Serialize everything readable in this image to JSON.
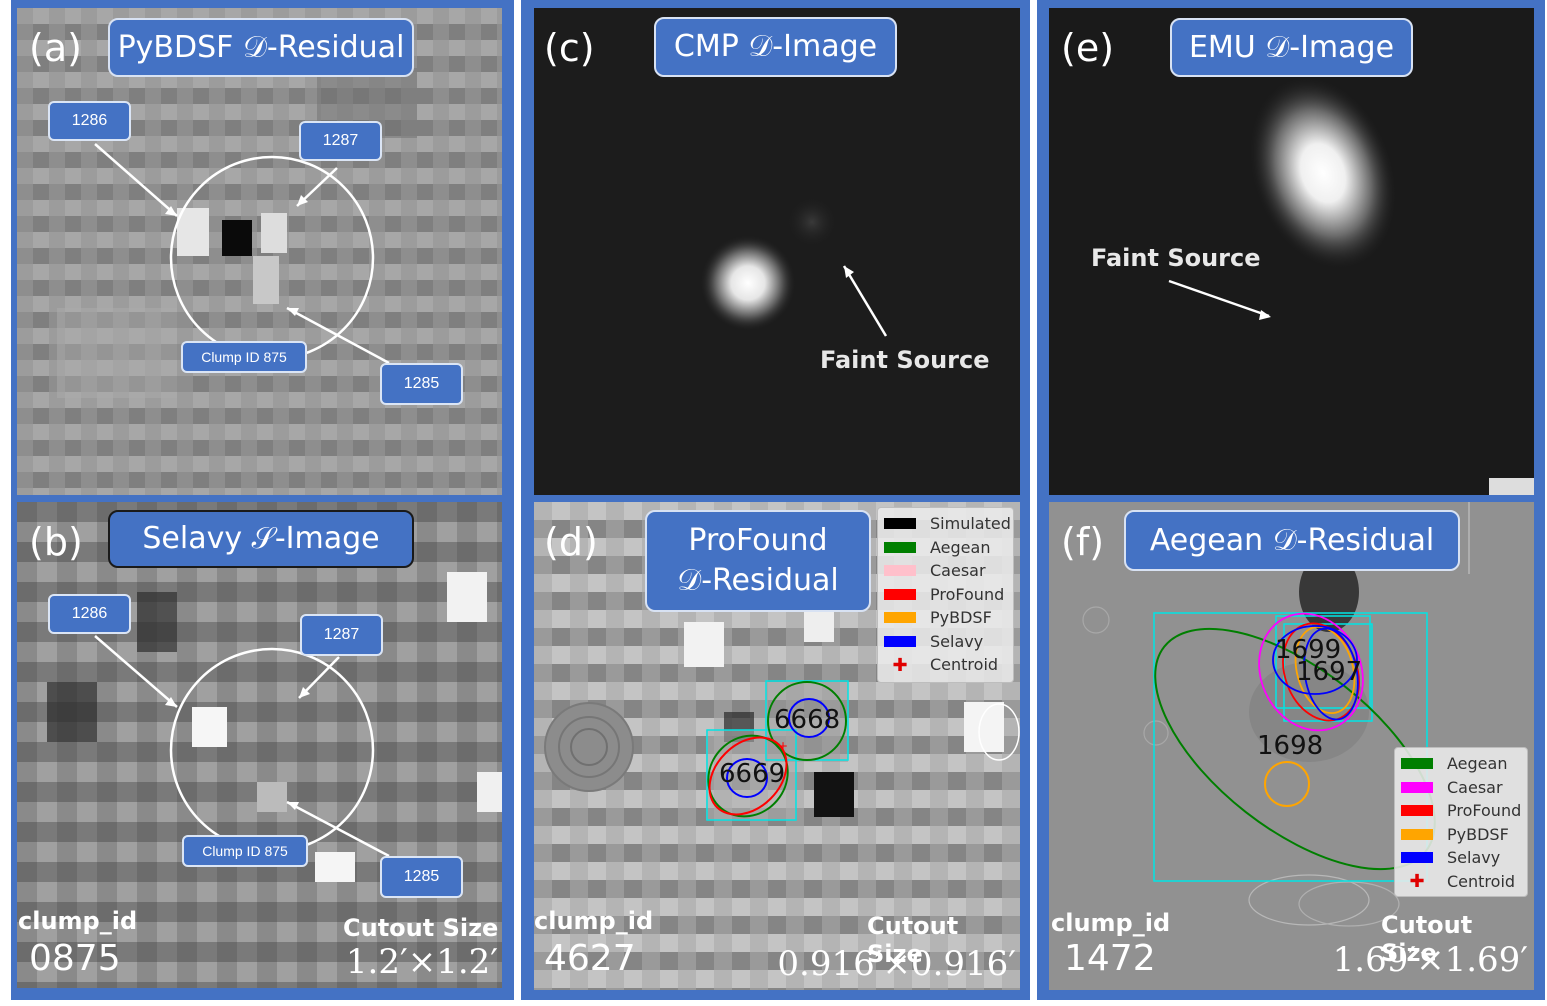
{
  "panels": {
    "a": {
      "letter": "(a)",
      "title": "PyBDSF 𝒟-Residual",
      "tags": [
        "1286",
        "1287",
        "Clump ID 875",
        "1285"
      ]
    },
    "b": {
      "letter": "(b)",
      "title": "Selavy 𝒮-Image",
      "tags": [
        "1286",
        "1287",
        "Clump ID 875",
        "1285"
      ],
      "clump_label": "clump_id",
      "clump_value": "0875",
      "size_label": "Cutout Size",
      "size_value": "1.2′×1.2′"
    },
    "c": {
      "letter": "(c)",
      "title": "CMP 𝒟-Image",
      "annotation": "Faint Source"
    },
    "d": {
      "letter": "(d)",
      "title_line1": "ProFound",
      "title_line2": "𝒟-Residual",
      "source_labels": [
        "6668",
        "6669"
      ],
      "clump_label": "clump_id",
      "clump_value": "4627",
      "size_label": "Cutout Size",
      "size_value": "0.916′×0.916′",
      "legend": [
        {
          "label": "Simulated",
          "color": "#000000"
        },
        {
          "label": "Aegean",
          "color": "#007f00"
        },
        {
          "label": "Caesar",
          "color": "#ffc0cb"
        },
        {
          "label": "ProFound",
          "color": "#ff0000"
        },
        {
          "label": "PyBDSF",
          "color": "#ffa500"
        },
        {
          "label": "Selavy",
          "color": "#0000ff"
        },
        {
          "label": "Centroid",
          "color": "#e00000",
          "marker": "cross"
        }
      ]
    },
    "e": {
      "letter": "(e)",
      "title": "EMU 𝒟-Image",
      "annotation": "Faint Source"
    },
    "f": {
      "letter": "(f)",
      "title": "Aegean 𝒟-Residual",
      "source_labels": [
        "1699",
        "1697",
        "1698"
      ],
      "clump_label": "clump_id",
      "clump_value": "1472",
      "size_label": "Cutout Size",
      "size_value": "1.69′×1.69′",
      "legend": [
        {
          "label": "Aegean",
          "color": "#007f00"
        },
        {
          "label": "Caesar",
          "color": "#ff00ff"
        },
        {
          "label": "ProFound",
          "color": "#ff0000"
        },
        {
          "label": "PyBDSF",
          "color": "#ffa500"
        },
        {
          "label": "Selavy",
          "color": "#0000ff"
        },
        {
          "label": "Centroid",
          "color": "#e00000",
          "marker": "cross"
        }
      ]
    }
  },
  "colors": {
    "frame": "#4472c4",
    "box": "#00e5e5"
  }
}
